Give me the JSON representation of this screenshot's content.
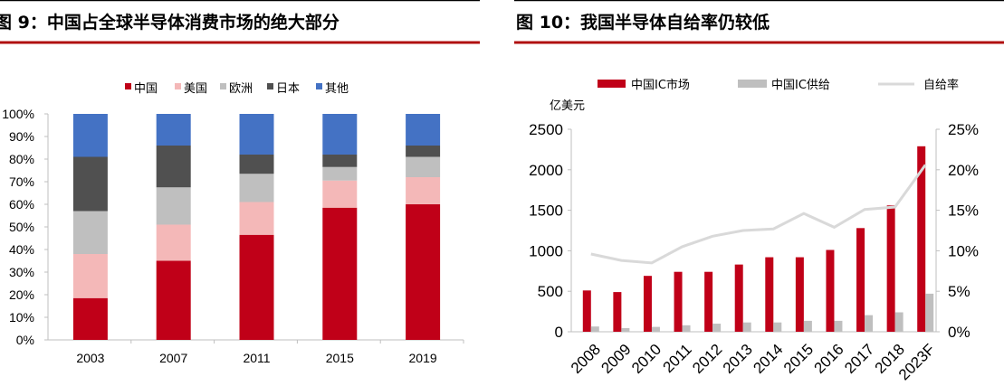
{
  "titles": {
    "left": "图 9：中国占全球半导体消费市场的绝大部分",
    "right": "图 10：我国半导体自给率仍较低"
  },
  "colors": {
    "accent_rule": "#B01010",
    "top_rule": "#000000"
  },
  "chart_data": [
    {
      "type": "bar",
      "stacked": true,
      "categories": [
        "2003",
        "2007",
        "2011",
        "2015",
        "2019"
      ],
      "series": [
        {
          "name": "中国",
          "color": "#C00018",
          "values": [
            18.5,
            35,
            46.5,
            58.5,
            60
          ]
        },
        {
          "name": "美国",
          "color": "#F4B8B8",
          "values": [
            19.5,
            16,
            14.5,
            12,
            12
          ]
        },
        {
          "name": "欧洲",
          "color": "#BFBFBF",
          "values": [
            19,
            16.5,
            12.5,
            6,
            9
          ]
        },
        {
          "name": "日本",
          "color": "#505050",
          "values": [
            24,
            18.5,
            8.5,
            5.5,
            5
          ]
        },
        {
          "name": "其他",
          "color": "#4472C4",
          "values": [
            19,
            14,
            18,
            18,
            14
          ]
        }
      ],
      "ylim": [
        0,
        100
      ],
      "yticks": [
        "0%",
        "10%",
        "20%",
        "30%",
        "40%",
        "50%",
        "60%",
        "70%",
        "80%",
        "90%",
        "100%"
      ],
      "legend": "top",
      "grid": false
    },
    {
      "type": "bar+line",
      "categories": [
        "2008",
        "2009",
        "2010",
        "2011",
        "2012",
        "2013",
        "2014",
        "2015",
        "2016",
        "2017",
        "2018",
        "2023F"
      ],
      "ylabel": "亿美元",
      "series": [
        {
          "name": "中国IC市场",
          "type": "bar",
          "axis": "left",
          "color": "#C00018",
          "values": [
            510,
            490,
            690,
            740,
            740,
            830,
            920,
            920,
            1010,
            1280,
            1560,
            2290
          ]
        },
        {
          "name": "中国IC供给",
          "type": "bar",
          "axis": "left",
          "color": "#BFBFBF",
          "values": [
            65,
            45,
            60,
            80,
            100,
            115,
            115,
            135,
            135,
            205,
            240,
            470
          ]
        },
        {
          "name": "自给率",
          "type": "line",
          "axis": "right",
          "color": "#D9D9D9",
          "values": [
            9.6,
            8.8,
            8.5,
            10.5,
            11.8,
            12.5,
            12.7,
            14.6,
            12.9,
            15.1,
            15.4,
            20.6
          ]
        }
      ],
      "ylim": [
        0,
        2500
      ],
      "yticks": [
        "0",
        "500",
        "1000",
        "1500",
        "2000",
        "2500"
      ],
      "y2lim": [
        0,
        25
      ],
      "y2ticks": [
        "0%",
        "5%",
        "10%",
        "15%",
        "20%",
        "25%"
      ],
      "legend": "top",
      "grid": false
    }
  ]
}
